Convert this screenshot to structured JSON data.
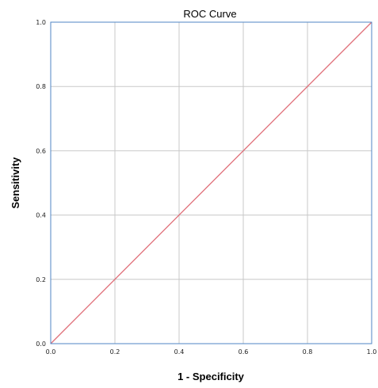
{
  "chart_data": {
    "type": "line",
    "title": "ROC Curve",
    "xlabel": "1 - Specificity",
    "ylabel": "Sensitivity",
    "xlim": [
      0,
      1
    ],
    "ylim": [
      0,
      1
    ],
    "x_ticks": [
      "0.0",
      "0.2",
      "0.4",
      "0.6",
      "0.8",
      "1.0"
    ],
    "y_ticks": [
      "0.0",
      "0.2",
      "0.4",
      "0.6",
      "0.8",
      "1.0"
    ],
    "grid": true,
    "series": [
      {
        "color": "#e0707a",
        "x": [
          0,
          1
        ],
        "y": [
          0,
          1
        ]
      }
    ],
    "frame_color": "#4f86c6",
    "grid_color": "#c8c8c8"
  }
}
